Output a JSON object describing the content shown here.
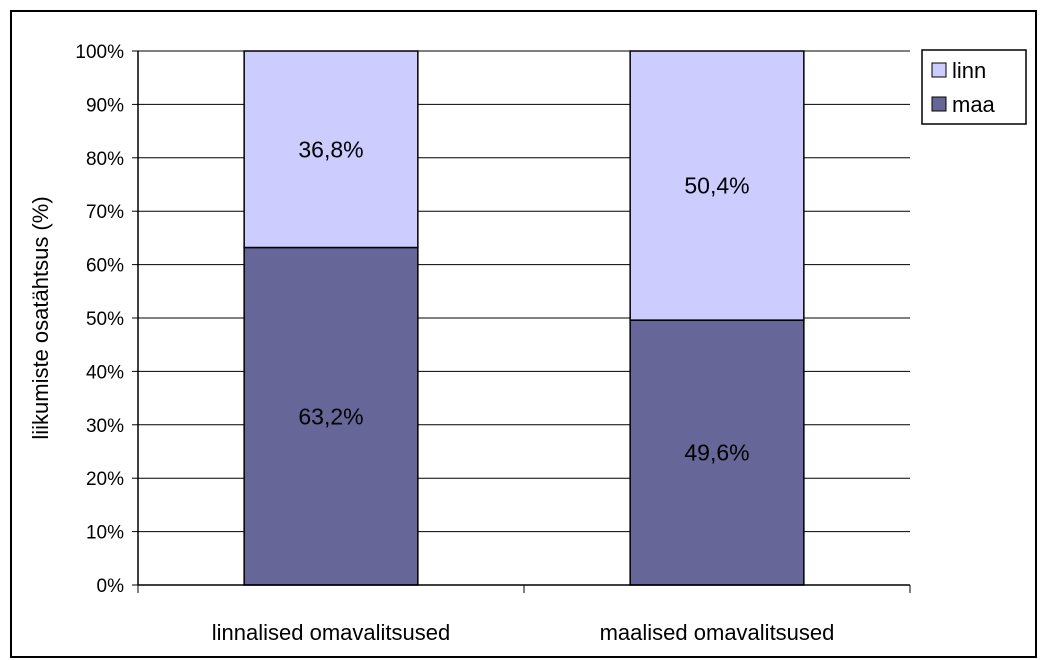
{
  "chart_data": {
    "type": "bar",
    "stacked": true,
    "categories": [
      "linnalised omavalitsused",
      "maalised omavalitsused"
    ],
    "series": [
      {
        "name": "maa",
        "values": [
          63.2,
          49.6
        ],
        "labels": [
          "63,2%",
          "49,6%"
        ],
        "color": "#666699"
      },
      {
        "name": "linn",
        "values": [
          36.8,
          50.4
        ],
        "labels": [
          "36,8%",
          "50,4%"
        ],
        "color": "#CCCCFF"
      }
    ],
    "title": "",
    "xlabel": "",
    "ylabel": "liikumiste osatähtsus (%)",
    "ylim": [
      0,
      100
    ],
    "yticks": [
      "0%",
      "10%",
      "20%",
      "30%",
      "40%",
      "50%",
      "60%",
      "70%",
      "80%",
      "90%",
      "100%"
    ],
    "grid": true,
    "legend_position": "top-right",
    "legend_order": [
      "linn",
      "maa"
    ]
  }
}
